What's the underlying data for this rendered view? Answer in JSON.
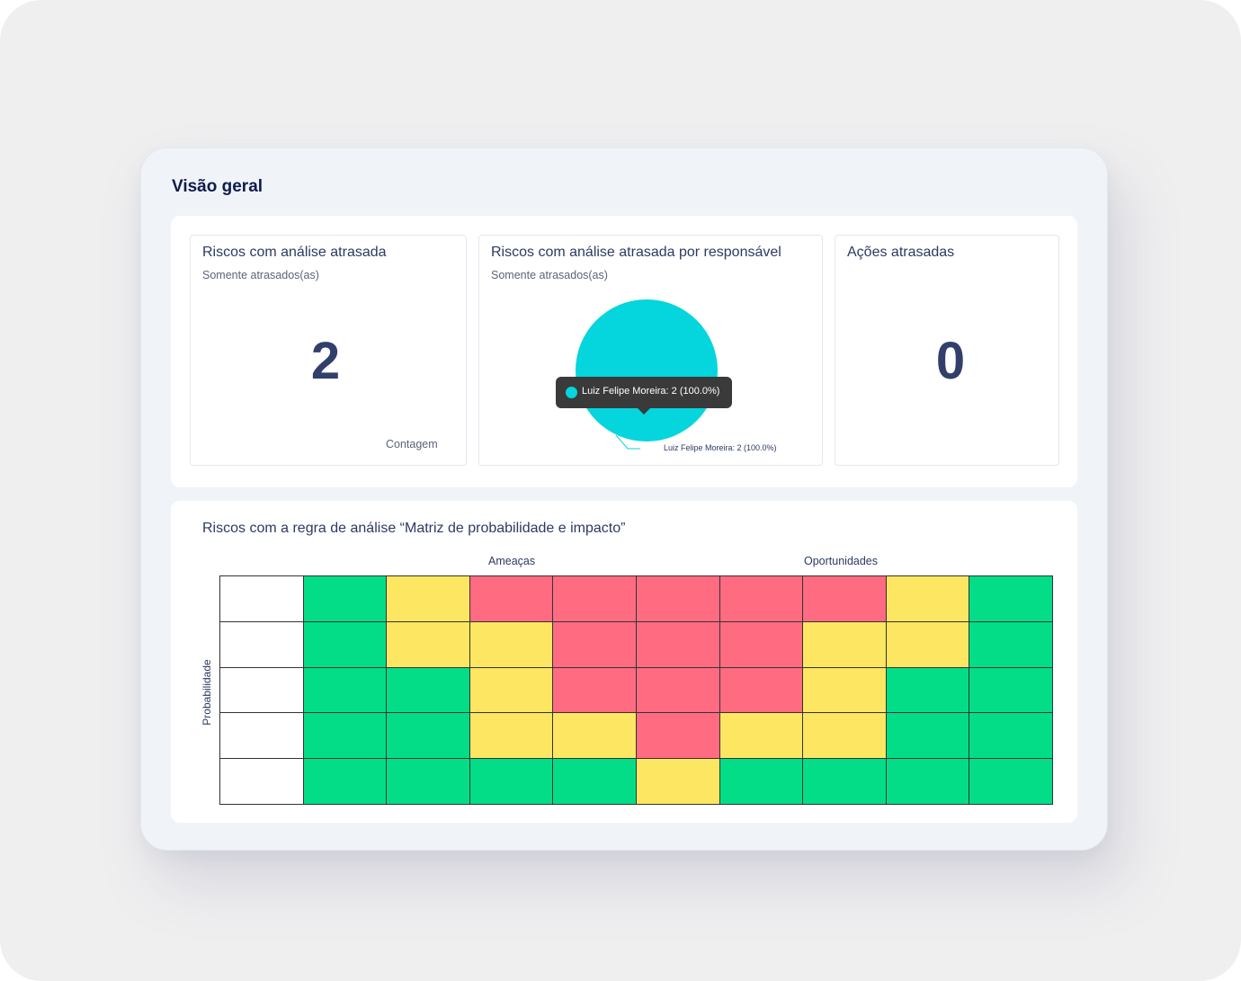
{
  "page": {
    "title": "Visão geral"
  },
  "colors": {
    "green": "#04dd88",
    "yellow": "#fde662",
    "red": "#ff6b81",
    "white": "#ffffff",
    "pie_slice": "#05d5dd",
    "accent_text": "#2d3a63"
  },
  "cards": {
    "overdue_risks": {
      "title": "Riscos com análise atrasada",
      "subtitle": "Somente atrasados(as)",
      "value": "2",
      "footer": "Contagem"
    },
    "overdue_by_owner": {
      "title": "Riscos com análise atrasada por responsável",
      "subtitle": "Somente atrasados(as)",
      "tooltip": "Luiz Felipe Moreira: 2 (100.0%)",
      "slice_label": "Luiz Felipe Moreira: 2 (100.0%)",
      "chart_data": {
        "type": "pie",
        "slices": [
          {
            "label": "Luiz Felipe Moreira",
            "value": 2,
            "percent": 100.0,
            "color": "#05d5dd"
          }
        ]
      }
    },
    "overdue_actions": {
      "title": "Ações atrasadas",
      "value": "0"
    }
  },
  "matrix": {
    "title": "Riscos com a regra de análise “Matriz de probabilidade e impacto”",
    "threats_label": "Ameaças",
    "opportunities_label": "Oportunidades",
    "y_label": "Probabilidade",
    "rows": [
      [
        "white",
        "green",
        "yellow",
        "red",
        "red",
        "red",
        "red",
        "red",
        "yellow",
        "green"
      ],
      [
        "white",
        "green",
        "yellow",
        "yellow",
        "red",
        "red",
        "red",
        "yellow",
        "yellow",
        "green"
      ],
      [
        "white",
        "green",
        "green",
        "yellow",
        "red",
        "red",
        "red",
        "yellow",
        "green",
        "green"
      ],
      [
        "white",
        "green",
        "green",
        "yellow",
        "yellow",
        "red",
        "yellow",
        "yellow",
        "green",
        "green"
      ],
      [
        "white",
        "green",
        "green",
        "green",
        "green",
        "yellow",
        "green",
        "green",
        "green",
        "green"
      ]
    ]
  }
}
